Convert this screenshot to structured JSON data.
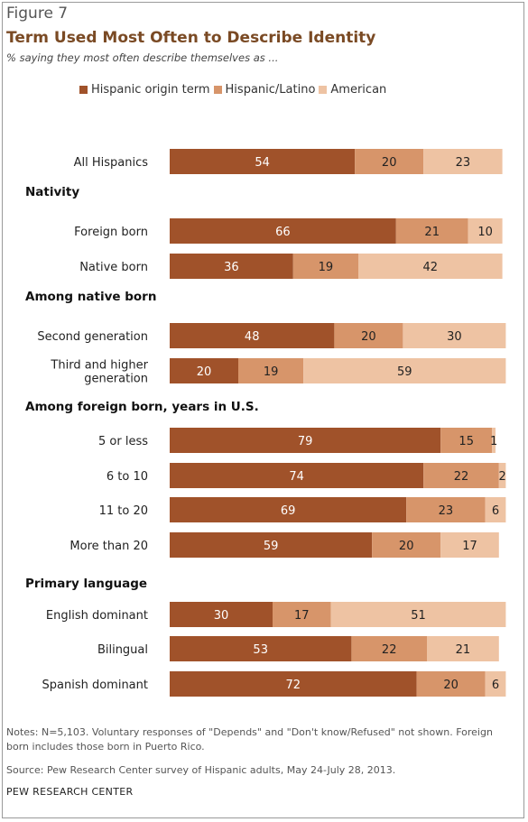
{
  "figure_label": "Figure 7",
  "notes": "Notes: N=5,103. Voluntary responses of \"Depends\" and \"Don't know/Refused\" not shown. Foreign born includes those born in Puerto Rico.",
  "source": "Source: Pew Research Center survey of Hispanic adults, May 24-July 28, 2013.",
  "organization": "PEW RESEARCH CENTER",
  "chart_data": {
    "type": "bar",
    "orientation": "horizontal",
    "stacked": true,
    "title": "Term Used Most Often to Describe Identity",
    "subtitle": "% saying they most often describe themselves as ...",
    "legend_position": "top",
    "series": [
      {
        "name": "Hispanic origin term",
        "color": "#a0522a"
      },
      {
        "name": "Hispanic/Latino",
        "color": "#d7956a"
      },
      {
        "name": "American",
        "color": "#eec3a3"
      }
    ],
    "groups": [
      {
        "heading": "",
        "rows": [
          {
            "label": [
              "All Hispanics"
            ],
            "values": [
              54,
              20,
              23
            ]
          }
        ]
      },
      {
        "heading": "Nativity",
        "rows": [
          {
            "label": [
              "Foreign born"
            ],
            "values": [
              66,
              21,
              10
            ]
          },
          {
            "label": [
              "Native born"
            ],
            "values": [
              36,
              19,
              42
            ]
          }
        ]
      },
      {
        "heading": "Among native born",
        "rows": [
          {
            "label": [
              "Second generation"
            ],
            "values": [
              48,
              20,
              30
            ]
          },
          {
            "label": [
              "Third and higher",
              "generation"
            ],
            "values": [
              20,
              19,
              59
            ]
          }
        ]
      },
      {
        "heading": "Among foreign born, years in U.S.",
        "rows": [
          {
            "label": [
              "5 or less"
            ],
            "values": [
              79,
              15,
              1
            ]
          },
          {
            "label": [
              "6 to 10"
            ],
            "values": [
              74,
              22,
              2
            ]
          },
          {
            "label": [
              "11 to 20"
            ],
            "values": [
              69,
              23,
              6
            ]
          },
          {
            "label": [
              "More than 20"
            ],
            "values": [
              59,
              20,
              17
            ]
          }
        ]
      },
      {
        "heading": "Primary language",
        "rows": [
          {
            "label": [
              "English dominant"
            ],
            "values": [
              30,
              17,
              51
            ]
          },
          {
            "label": [
              "Bilingual"
            ],
            "values": [
              53,
              22,
              21
            ]
          },
          {
            "label": [
              "Spanish dominant"
            ],
            "values": [
              72,
              20,
              6
            ]
          }
        ]
      }
    ]
  }
}
